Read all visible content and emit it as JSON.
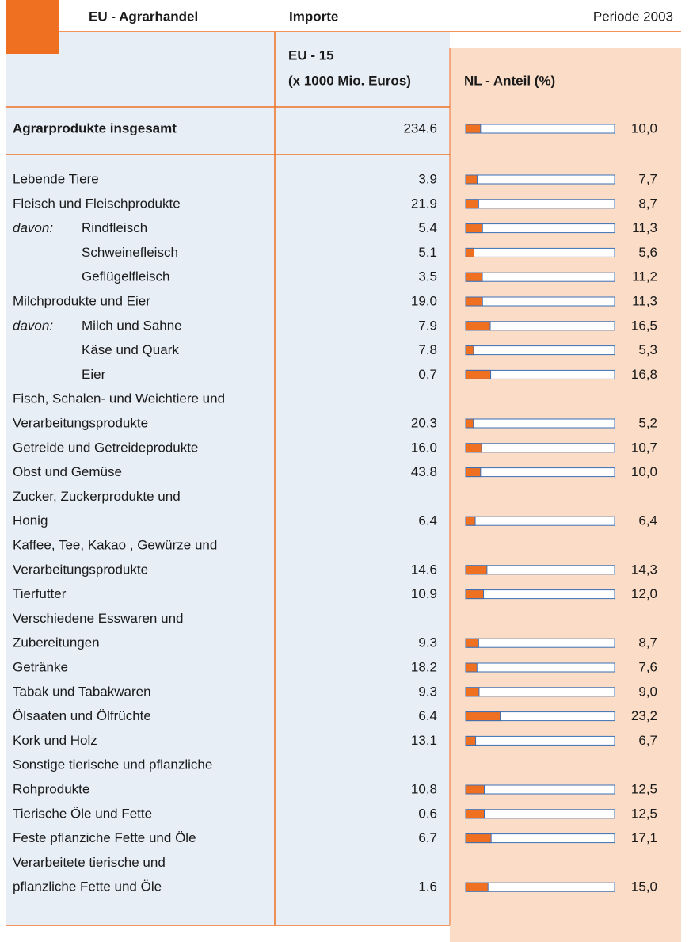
{
  "header": {
    "title": "EU - Agrarhandel",
    "imports": "Importe",
    "period": "Periode 2003"
  },
  "columns": {
    "imports": [
      "EU - 15",
      "(x 1000 Mio. Euros)"
    ],
    "share": "NL - Anteil (%)"
  },
  "scale": {
    "xlim": [
      0,
      100
    ]
  },
  "total": {
    "label": [
      "Agrarprodukte insgesamt"
    ],
    "import": "234.6",
    "share": 10,
    "share_label": "10,0"
  },
  "rows": [
    {
      "label": [
        "Lebende Tiere"
      ],
      "import": "3.9",
      "share": 7.7,
      "share_label": "7,7"
    },
    {
      "label": [
        "Fleisch und Fleischprodukte"
      ],
      "import": "21.9",
      "share": 8.7,
      "share_label": "8,7",
      "sub": {
        "prefix": "davon:",
        "rows": [
          {
            "label": [
              "Rindfleisch"
            ],
            "import": "5.4",
            "share": 11.3,
            "share_label": "11,3"
          },
          {
            "label": [
              "Schweinefleisch"
            ],
            "import": "5.1",
            "share": 5.6,
            "share_label": "5,6"
          },
          {
            "label": [
              "Geflügelfleisch"
            ],
            "import": "3.5",
            "share": 11.2,
            "share_label": "11,2"
          }
        ]
      }
    },
    {
      "label": [
        "Milchprodukte und Eier"
      ],
      "import": "19.0",
      "share": 11.3,
      "share_label": "11,3",
      "sub": {
        "prefix": "davon:",
        "rows": [
          {
            "label": [
              "Milch und Sahne"
            ],
            "import": "7.9",
            "share": 16.5,
            "share_label": "16,5"
          },
          {
            "label": [
              "Käse und Quark"
            ],
            "import": "7.8",
            "share": 5.3,
            "share_label": "5,3"
          },
          {
            "label": [
              "Eier"
            ],
            "import": "0.7",
            "share": 16.8,
            "share_label": "16,8"
          }
        ]
      }
    },
    {
      "label": [
        "Fisch, Schalen- und Weichtiere und",
        "Verarbeitungsprodukte"
      ],
      "import": "20.3",
      "share": 5.2,
      "share_label": "5,2"
    },
    {
      "label": [
        "Getreide und Getreideprodukte"
      ],
      "import": "16.0",
      "share": 10.7,
      "share_label": "10,7"
    },
    {
      "label": [
        "Obst und Gemüse"
      ],
      "import": "43.8",
      "share": 10.0,
      "share_label": "10,0"
    },
    {
      "label": [
        "Zucker, Zuckerprodukte und",
        "Honig"
      ],
      "import": "6.4",
      "share": 6.4,
      "share_label": "6,4"
    },
    {
      "label": [
        "Kaffee, Tee, Kakao , Gewürze und",
        "Verarbeitungsprodukte"
      ],
      "import": "14.6",
      "share": 14.3,
      "share_label": "14,3"
    },
    {
      "label": [
        "Tierfutter"
      ],
      "import": "10.9",
      "share": 12.0,
      "share_label": "12,0"
    },
    {
      "label": [
        "Verschiedene Esswaren und",
        "Zubereitungen"
      ],
      "import": "9.3",
      "share": 8.7,
      "share_label": "8,7"
    },
    {
      "label": [
        "Getränke"
      ],
      "import": "18.2",
      "share": 7.6,
      "share_label": "7,6"
    },
    {
      "label": [
        "Tabak und Tabakwaren"
      ],
      "import": "9.3",
      "share": 9.0,
      "share_label": "9,0"
    },
    {
      "label": [
        "Ölsaaten und Ölfrüchte"
      ],
      "import": "6.4",
      "share": 23.2,
      "share_label": "23,2"
    },
    {
      "label": [
        "Kork und Holz"
      ],
      "import": "13.1",
      "share": 6.7,
      "share_label": "6,7"
    },
    {
      "label": [
        "Sonstige tierische und pflanzliche",
        "Rohprodukte"
      ],
      "import": "10.8",
      "share": 12.5,
      "share_label": "12,5"
    },
    {
      "label": [
        "Tierische Öle und Fette"
      ],
      "import": "0.6",
      "share": 12.5,
      "share_label": "12,5"
    },
    {
      "label": [
        "Feste pflanziche Fette und Öle"
      ],
      "import": "6.7",
      "share": 17.1,
      "share_label": "17,1"
    },
    {
      "label": [
        "Verarbeitete tierische und",
        "pflanzliche Fette und Öle"
      ],
      "import": "1.6",
      "share": 15.0,
      "share_label": "15,0"
    }
  ]
}
